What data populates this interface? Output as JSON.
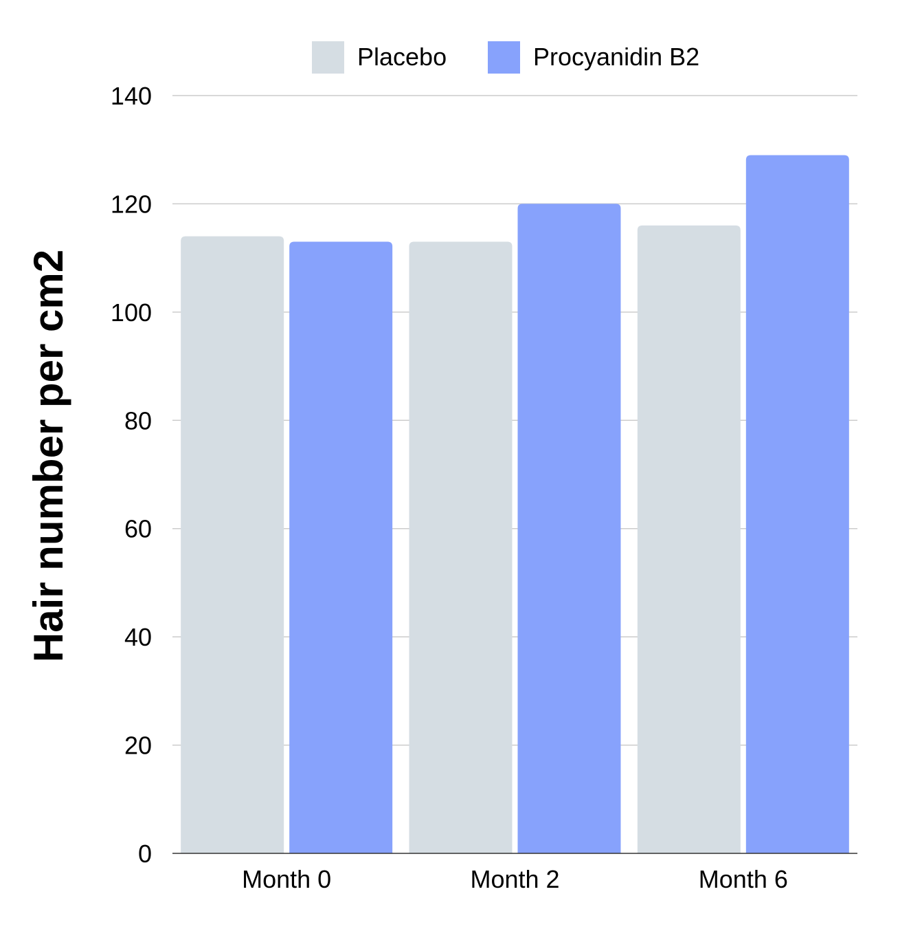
{
  "chart_data": {
    "type": "bar",
    "title": "",
    "xlabel": "",
    "ylabel": "Hair number per cm2",
    "categories": [
      "Month 0",
      "Month 2",
      "Month 6"
    ],
    "series": [
      {
        "name": "Placebo",
        "values": [
          114,
          113,
          116
        ],
        "color": "#d5dde3"
      },
      {
        "name": "Procyanidin B2",
        "values": [
          113,
          120,
          129
        ],
        "color": "#87a2fc"
      }
    ],
    "ylim": [
      0,
      140
    ],
    "yticks": [
      0,
      20,
      40,
      60,
      80,
      100,
      120,
      140
    ],
    "grid": true,
    "legend": "top-center"
  }
}
